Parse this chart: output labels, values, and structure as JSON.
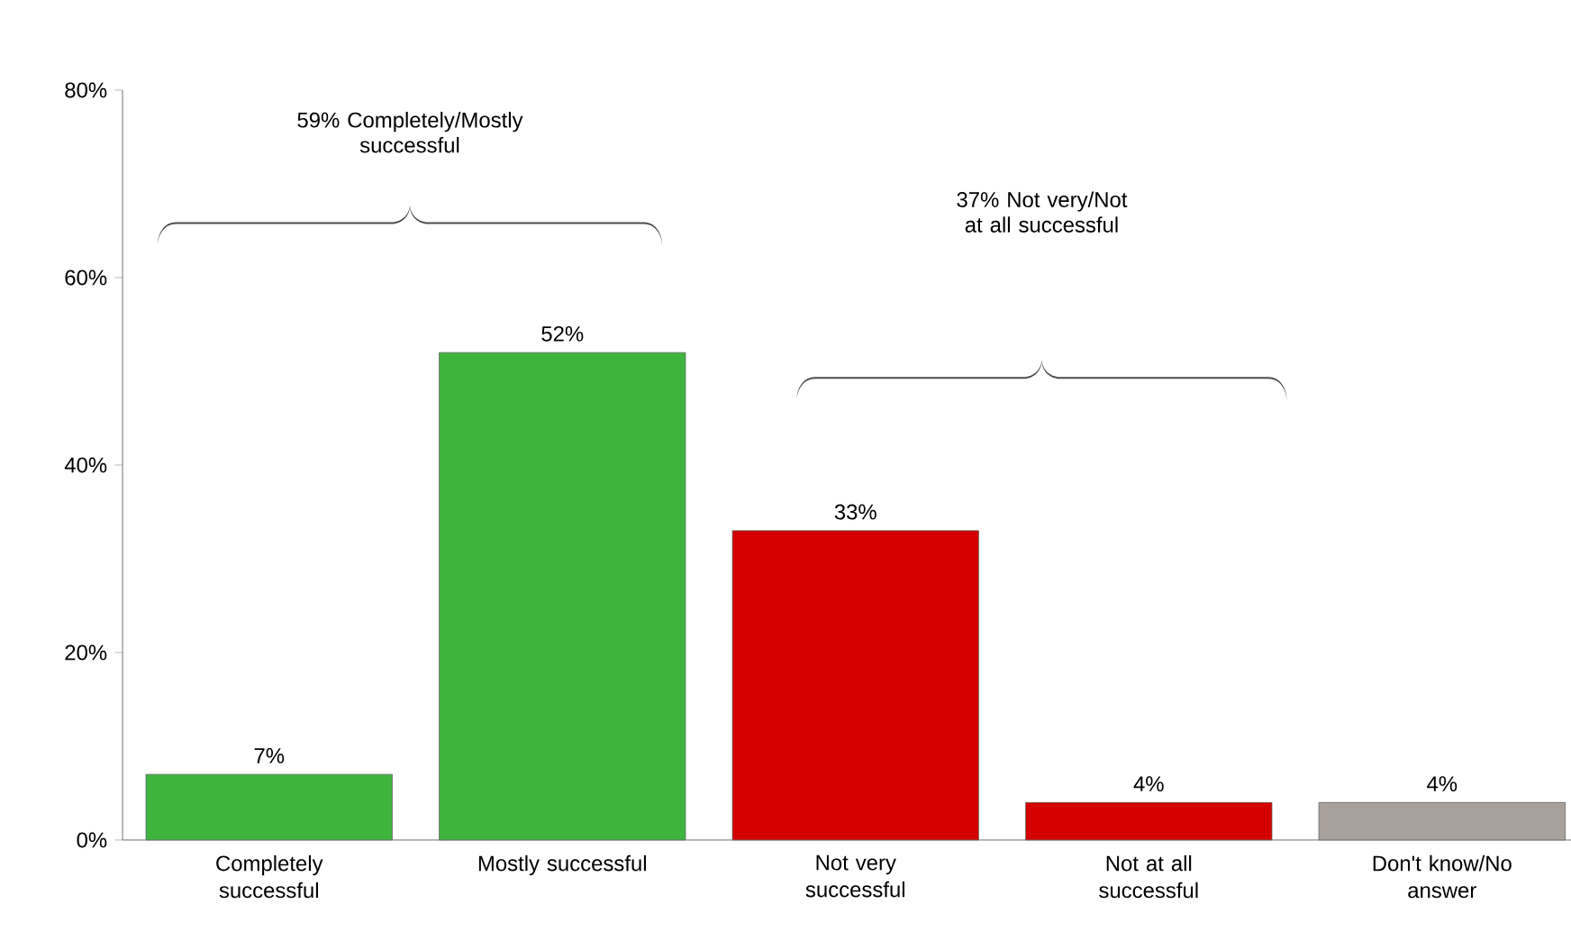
{
  "chart_data": {
    "type": "bar",
    "categories": [
      "Completely successful",
      "Mostly successful",
      "Not very successful",
      "Not at all successful",
      "Don't know/No answer"
    ],
    "values": [
      7,
      52,
      33,
      4,
      4
    ],
    "value_labels": [
      "7%",
      "52%",
      "33%",
      "4%",
      "4%"
    ],
    "colors": [
      "#3db53d",
      "#3db53d",
      "#d40000",
      "#d40000",
      "#a8a09a"
    ],
    "ylim": [
      0,
      80
    ],
    "yticks": [
      {
        "value": 0,
        "label": "0%"
      },
      {
        "value": 20,
        "label": "20%"
      },
      {
        "value": 40,
        "label": "40%"
      },
      {
        "value": 60,
        "label": "60%"
      },
      {
        "value": 80,
        "label": "80%"
      }
    ],
    "grid": false,
    "annotations": [
      "59% Completely/Mostly successful",
      "37% Not very/Not at all successful"
    ]
  }
}
